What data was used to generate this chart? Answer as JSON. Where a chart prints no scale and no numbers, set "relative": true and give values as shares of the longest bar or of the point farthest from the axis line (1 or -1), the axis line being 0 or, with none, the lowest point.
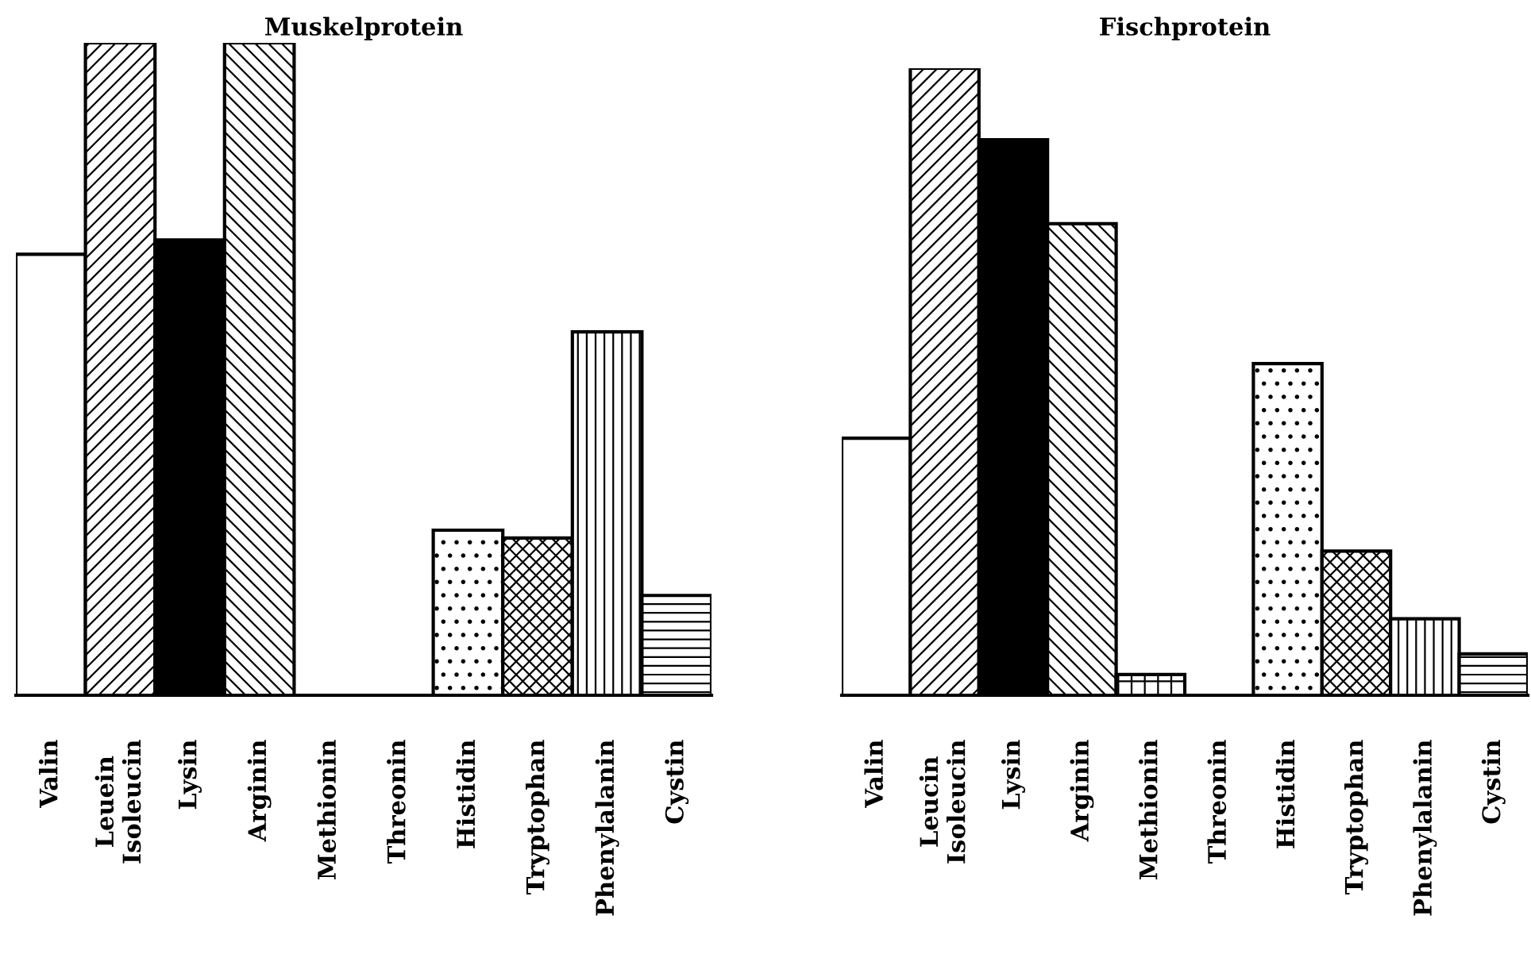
{
  "chart_data": [
    {
      "type": "bar",
      "title": "Muskelprotein",
      "relative": true,
      "grid": false,
      "legend": false,
      "tick_labels": "x",
      "categories": [
        "Valin",
        "Leuein\nIsoleucin",
        "Lysin",
        "Arginin",
        "Methionin",
        "Threonin",
        "Histidin",
        "Tryptophan",
        "Phenylalanin",
        "Cystin"
      ],
      "colors": [
        "#ffffff",
        "#000000",
        "#000000",
        "#000000",
        "#000000",
        "#000000",
        "#000000",
        "#000000",
        "#000000",
        "#000000"
      ],
      "values": [
        0.676,
        1,
        0.698,
        1,
        0,
        0,
        0.253,
        0.241,
        0.557,
        0.153
      ]
    },
    {
      "type": "bar",
      "title": "Fischprotein",
      "relative": true,
      "grid": false,
      "legend": false,
      "tick_labels": "x",
      "categories": [
        "Valin",
        "Leucin\nIsoleucin",
        "Lysin",
        "Arginin",
        "Methionin",
        "Threonin",
        "Histidin",
        "Tryptophan",
        "Phenylalanin",
        "Cystin"
      ],
      "colors": [
        "#ffffff",
        "#000000",
        "#000000",
        "#000000",
        "#000000",
        "#000000",
        "#000000",
        "#000000",
        "#000000",
        "#000000"
      ],
      "values": [
        0.41,
        1,
        0.886,
        0.752,
        0.033,
        0,
        0.529,
        0.23,
        0.122,
        0.066
      ]
    }
  ]
}
